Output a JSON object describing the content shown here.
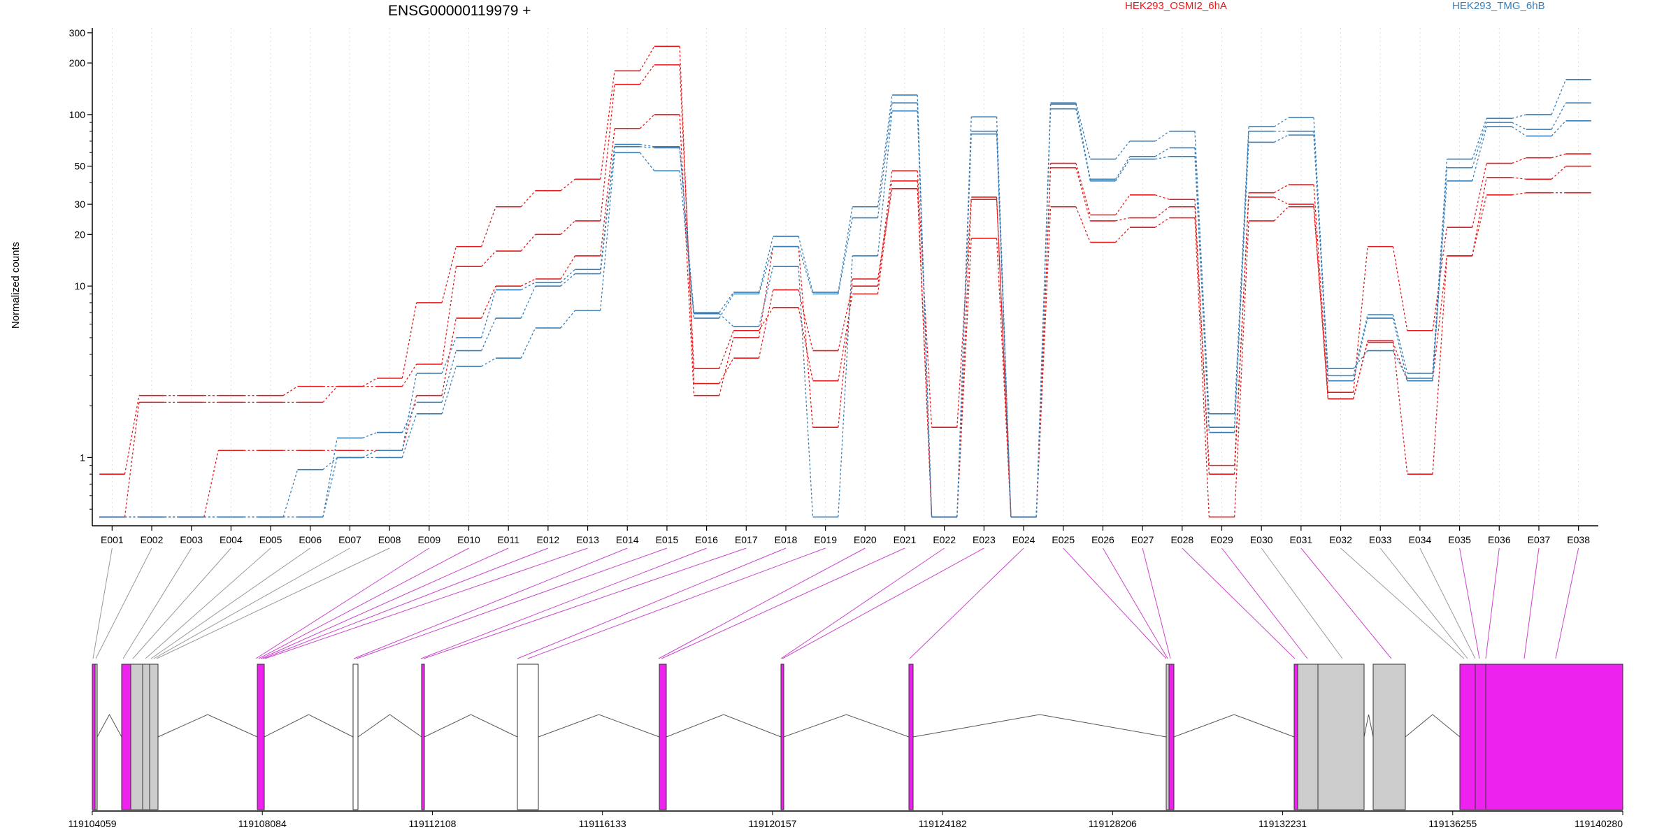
{
  "chart_data": {
    "type": "line",
    "title": "ENSG00000119979 +",
    "ylabel": "Normalized counts",
    "yscale": "log",
    "ylim": [
      0.4,
      320
    ],
    "yticks": [
      1,
      10,
      20,
      30,
      50,
      100,
      200,
      300
    ],
    "grid": "vertical dotted",
    "colors": {
      "HEK293_OSMI2_6hA": "#e41a1c",
      "HEK293_TMG_6hB": "#377eb8",
      "exon_tested": "#ee22ee",
      "exon_other": "#cccccc",
      "exon_empty": "#ffffff"
    },
    "legend": [
      {
        "name": "HEK293_OSMI2_6hA",
        "color": "#e41a1c"
      },
      {
        "name": "HEK293_TMG_6hB",
        "color": "#377eb8"
      }
    ],
    "categories": [
      "E001",
      "E002",
      "E003",
      "E004",
      "E005",
      "E006",
      "E007",
      "E008",
      "E009",
      "E010",
      "E011",
      "E012",
      "E013",
      "E014",
      "E015",
      "E016",
      "E017",
      "E018",
      "E019",
      "E020",
      "E021",
      "E022",
      "E023",
      "E024",
      "E025",
      "E026",
      "E027",
      "E028",
      "E029",
      "E030",
      "E031",
      "E032",
      "E033",
      "E034",
      "E035",
      "E036",
      "E037",
      "E038"
    ],
    "series": [
      {
        "group": "HEK293_OSMI2_6hA",
        "color": "#e41a1c",
        "values": [
          0.8,
          2.3,
          2.3,
          2.3,
          2.3,
          2.6,
          2.6,
          2.9,
          8,
          17,
          29,
          36,
          42,
          180,
          250,
          2.7,
          3.8,
          9.5,
          4.2,
          10,
          47,
          1.5,
          33,
          0.45,
          52,
          26,
          34,
          32,
          0.8,
          35,
          39,
          2.4,
          17,
          5.5,
          22,
          52,
          56,
          59
        ]
      },
      {
        "group": "HEK293_OSMI2_6hA",
        "color": "#e41a1c",
        "values": [
          0.45,
          2.1,
          2.1,
          2.1,
          2.1,
          2.1,
          2.6,
          2.6,
          3.5,
          13,
          16,
          20,
          24,
          150,
          195,
          3.3,
          5.5,
          7.5,
          2.8,
          9,
          41,
          0.45,
          32,
          0.45,
          49,
          24,
          25,
          29,
          0.9,
          33,
          30,
          2.2,
          4.8,
          0.8,
          15,
          43,
          42,
          50
        ]
      },
      {
        "group": "HEK293_OSMI2_6hA",
        "color": "#e41a1c",
        "values": [
          0.45,
          0.45,
          0.45,
          1.1,
          1.1,
          1.1,
          1.1,
          1.1,
          2.3,
          6.5,
          10,
          11,
          15,
          83,
          100,
          2.3,
          5,
          17,
          1.5,
          11,
          37,
          0.45,
          19,
          0.45,
          29,
          18,
          22,
          25,
          0.45,
          24,
          29,
          2.2,
          4.7,
          2.8,
          15,
          34,
          35,
          35
        ]
      },
      {
        "group": "HEK293_TMG_6hB",
        "color": "#377eb8",
        "values": [
          0.45,
          0.45,
          0.45,
          0.45,
          0.45,
          0.85,
          1.0,
          1.1,
          3.1,
          5.0,
          9.5,
          10.5,
          12.5,
          67,
          65,
          7.0,
          9.2,
          19.5,
          9.2,
          29,
          130,
          0.45,
          97,
          0.45,
          117,
          55,
          70,
          80,
          1.8,
          85,
          96,
          3.0,
          6.8,
          3.1,
          55,
          95,
          100,
          160
        ]
      },
      {
        "group": "HEK293_TMG_6hB",
        "color": "#377eb8",
        "values": [
          0.45,
          0.45,
          0.45,
          0.45,
          0.45,
          0.45,
          1.3,
          1.4,
          2.1,
          4.2,
          6.5,
          10.0,
          11.8,
          65,
          64,
          6.5,
          9.0,
          17,
          9.0,
          25,
          117,
          0.45,
          80,
          0.45,
          115,
          42,
          57,
          64,
          1.4,
          80,
          80,
          2.8,
          6.5,
          2.8,
          49,
          90,
          82,
          117
        ]
      },
      {
        "group": "HEK293_TMG_6hB",
        "color": "#377eb8",
        "values": [
          0.45,
          0.45,
          0.45,
          0.45,
          0.45,
          0.45,
          1.0,
          1.0,
          1.8,
          3.4,
          3.8,
          5.7,
          7.2,
          60,
          47,
          6.9,
          5.8,
          13,
          0.45,
          15,
          105,
          0.45,
          77,
          0.45,
          108,
          41,
          55,
          57,
          1.5,
          69,
          76,
          3.3,
          4.2,
          2.9,
          41,
          85,
          75,
          92
        ]
      }
    ],
    "genomic_axis": {
      "labels": [
        "119104059",
        "119108084",
        "119112108",
        "119116133",
        "119120157",
        "119124182",
        "119128206",
        "119132231",
        "119136255",
        "119140280"
      ]
    }
  }
}
